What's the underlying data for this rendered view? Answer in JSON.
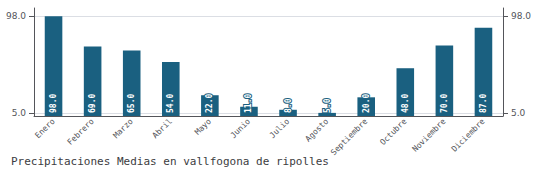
{
  "chart_data": {
    "type": "bar",
    "title": "Precipitaciones Medias en vallfogona de ripolles",
    "categories": [
      "Enero",
      "Febrero",
      "Marzo",
      "Abril",
      "Mayo",
      "Junio",
      "Julio",
      "Agosto",
      "Septiembre",
      "Octubre",
      "Noviembre",
      "Diciembre"
    ],
    "values": [
      98.0,
      69.0,
      65.0,
      54.0,
      22.0,
      11.0,
      8.0,
      5.0,
      20.0,
      48.0,
      70.0,
      87.0
    ],
    "value_labels": [
      "98.0",
      "69.0",
      "65.0",
      "54.0",
      "22.0",
      "11.0",
      "8.0",
      "5.0",
      "20.0",
      "48.0",
      "70.0",
      "87.0"
    ],
    "data_labels": true,
    "color": "#1a6080",
    "ylim": [
      2.0,
      106.0
    ],
    "yticks": [
      {
        "value": 5.0,
        "label": "5.0"
      },
      {
        "value": 98.0,
        "label": "98.0"
      }
    ],
    "y2lim": [
      2.0,
      106.0
    ],
    "y2ticks": [
      {
        "value": 5.0,
        "label": "5.0"
      },
      {
        "value": 98.0,
        "label": "98.0"
      }
    ],
    "grid": true
  }
}
